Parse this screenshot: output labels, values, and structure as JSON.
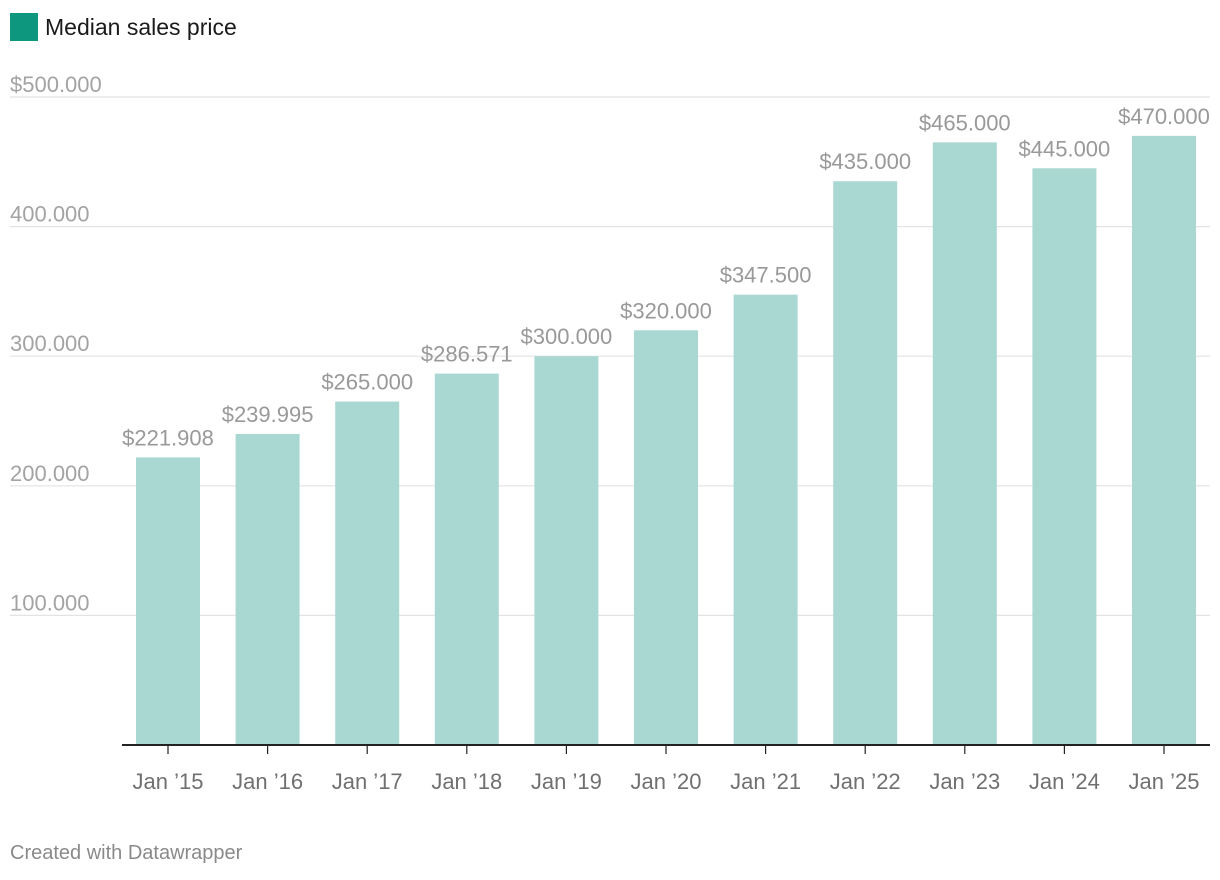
{
  "legend": {
    "label": "Median sales price",
    "color": "#0c977e"
  },
  "footer": {
    "text": "Created with Datawrapper"
  },
  "colors": {
    "bar": "#a8d8d1",
    "grid": "#e3e3e3",
    "axis": "#222222"
  },
  "chart_data": {
    "type": "bar",
    "title": "",
    "xlabel": "",
    "ylabel": "",
    "ylim": [
      0,
      500000
    ],
    "categories": [
      "Jan ’15",
      "Jan ’16",
      "Jan ’17",
      "Jan ’18",
      "Jan ’19",
      "Jan ’20",
      "Jan ’21",
      "Jan ’22",
      "Jan ’23",
      "Jan ’24",
      "Jan ’25"
    ],
    "series": [
      {
        "name": "Median sales price",
        "values": [
          221908,
          239995,
          265000,
          286571,
          300000,
          320000,
          347500,
          435000,
          465000,
          445000,
          470000
        ]
      }
    ],
    "data_labels": [
      "$221.908",
      "$239.995",
      "$265.000",
      "$286.571",
      "$300.000",
      "$320.000",
      "$347.500",
      "$435.000",
      "$465.000",
      "$445.000",
      "$470.000"
    ],
    "yticks": [
      {
        "value": 100000,
        "label": "100.000"
      },
      {
        "value": 200000,
        "label": "200.000"
      },
      {
        "value": 300000,
        "label": "300.000"
      },
      {
        "value": 400000,
        "label": "400.000"
      },
      {
        "value": 500000,
        "label": "$500.000"
      }
    ],
    "grid": true,
    "legend_position": "top-left"
  }
}
